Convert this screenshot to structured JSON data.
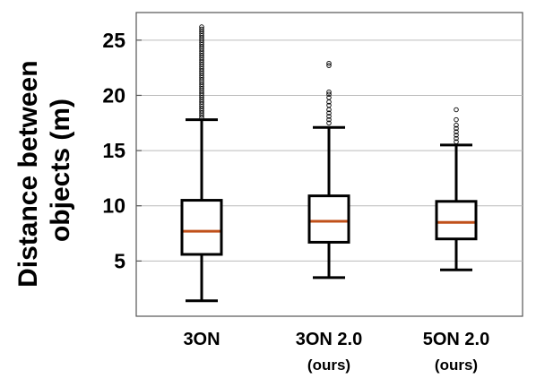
{
  "chart_data": {
    "type": "box",
    "title": "",
    "ylabel_lines": [
      "Distance between",
      "objects (m)"
    ],
    "xlabel": "",
    "ylim": [
      0,
      27.5
    ],
    "yticks": [
      5,
      10,
      15,
      20,
      25
    ],
    "grid": "horizontal",
    "legend": "none",
    "colors": {
      "box": "#000000",
      "median": "#c0501a",
      "grid": "#bbbbbb",
      "frame": "#555555",
      "flier": "#000000"
    },
    "categories": [
      {
        "label": "3ON",
        "sublabel": ""
      },
      {
        "label": "3ON 2.0",
        "sublabel": "(ours)"
      },
      {
        "label": "5ON 2.0",
        "sublabel": "(ours)"
      }
    ],
    "boxes": [
      {
        "whisker_low": 1.4,
        "q1": 5.6,
        "median": 7.7,
        "q3": 10.5,
        "whisker_high": 17.8,
        "fliers": [
          18.0,
          18.2,
          18.4,
          18.6,
          18.8,
          19.0,
          19.2,
          19.4,
          19.6,
          19.8,
          20.0,
          20.2,
          20.4,
          20.6,
          20.8,
          21.0,
          21.2,
          21.4,
          21.6,
          21.8,
          22.0,
          22.2,
          22.4,
          22.6,
          22.8,
          23.0,
          23.2,
          23.4,
          23.6,
          23.8,
          24.0,
          24.2,
          24.4,
          24.6,
          24.8,
          25.0,
          25.2,
          25.4,
          25.6,
          25.8,
          26.0,
          26.2
        ]
      },
      {
        "whisker_low": 3.5,
        "q1": 6.7,
        "median": 8.6,
        "q3": 10.9,
        "whisker_high": 17.1,
        "fliers": [
          17.5,
          17.8,
          18.1,
          18.4,
          18.7,
          19.1,
          19.4,
          19.8,
          20.1,
          20.3,
          22.7,
          22.9
        ]
      },
      {
        "whisker_low": 4.2,
        "q1": 7.0,
        "median": 8.5,
        "q3": 10.4,
        "whisker_high": 15.5,
        "fliers": [
          15.8,
          16.1,
          16.4,
          16.7,
          17.0,
          17.3,
          17.8,
          18.7
        ]
      }
    ]
  }
}
